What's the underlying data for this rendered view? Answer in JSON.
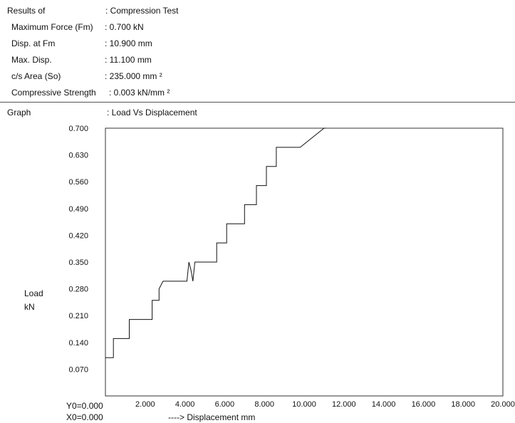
{
  "header": {
    "results_label": "Results of",
    "results_value": ": Compression Test",
    "fields": [
      {
        "label": "Maximum Force (Fm)",
        "value": ": 0.700  kN"
      },
      {
        "label": "Disp. at Fm",
        "value": ": 10.900  mm"
      },
      {
        "label": "Max. Disp.",
        "value": ": 11.100  mm"
      },
      {
        "label": "c/s Area (So)",
        "value": ": 235.000  mm ²"
      },
      {
        "label": "Compressive Strength",
        "value": ": 0.003  kN/mm ²"
      }
    ]
  },
  "graph": {
    "label": "Graph",
    "title": ":  Load Vs Displacement",
    "ylabel_line1": "Load",
    "ylabel_line2": "kN",
    "y0_label": "Y0=0.000",
    "x0_label": "X0=0.000",
    "xlabel": "----> Displacement  mm"
  },
  "chart_data": {
    "type": "line",
    "title": "Load Vs Displacement",
    "xlabel": "Displacement  mm",
    "ylabel": "Load kN",
    "xlim": [
      0,
      20
    ],
    "ylim": [
      0,
      0.7
    ],
    "x_ticks": [
      "2.000",
      "4.000",
      "6.000",
      "8.000",
      "10.000",
      "12.000",
      "14.000",
      "16.000",
      "18.000",
      "20.000"
    ],
    "y_ticks": [
      "0.070",
      "0.140",
      "0.210",
      "0.280",
      "0.350",
      "0.420",
      "0.490",
      "0.560",
      "0.630",
      "0.700"
    ],
    "grid": false,
    "series": [
      {
        "x": [
          0.0,
          0.25,
          0.25,
          0.4,
          0.4,
          1.2,
          1.2,
          2.35,
          2.35,
          2.7,
          2.7,
          2.9,
          2.9,
          4.1,
          4.2,
          4.3,
          4.4,
          4.5,
          4.5,
          5.6,
          5.6,
          6.1,
          6.1,
          7.0,
          7.0,
          7.6,
          7.6,
          8.1,
          8.1,
          8.6,
          8.6,
          9.8,
          9.8,
          11.0,
          11.1
        ],
        "y": [
          0.1,
          0.1,
          0.1,
          0.1,
          0.15,
          0.15,
          0.2,
          0.2,
          0.25,
          0.25,
          0.28,
          0.3,
          0.3,
          0.3,
          0.35,
          0.33,
          0.3,
          0.35,
          0.35,
          0.35,
          0.4,
          0.4,
          0.45,
          0.45,
          0.5,
          0.5,
          0.55,
          0.55,
          0.6,
          0.6,
          0.65,
          0.65,
          0.65,
          0.7,
          0.7
        ]
      }
    ]
  }
}
